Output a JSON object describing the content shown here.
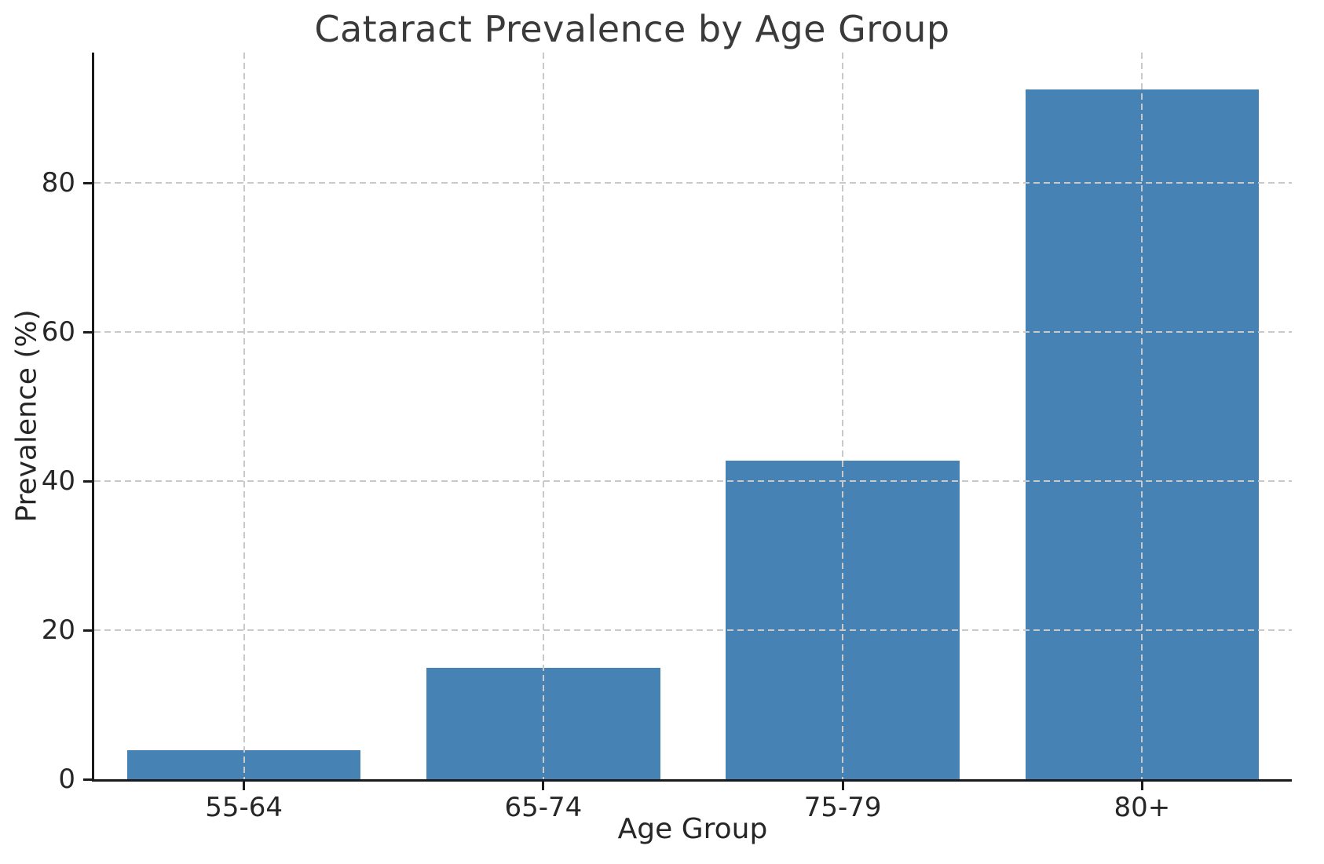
{
  "chart_data": {
    "type": "bar",
    "title": "Cataract Prevalence by Age Group",
    "xlabel": "Age Group",
    "ylabel": "Prevalence (%)",
    "categories": [
      "55-64",
      "65-74",
      "75-79",
      "80+"
    ],
    "values": [
      3.9,
      15.0,
      42.8,
      92.6
    ],
    "ylim": [
      0,
      97.5
    ],
    "yticks": [
      0,
      20,
      40,
      60,
      80
    ],
    "bar_color": "#4682b4",
    "grid": {
      "style": "dashed",
      "color": "#c9c9c9",
      "axes": "both",
      "drawn_over_bars": true
    },
    "legend_position": "none",
    "spines": [
      "left",
      "bottom"
    ]
  }
}
